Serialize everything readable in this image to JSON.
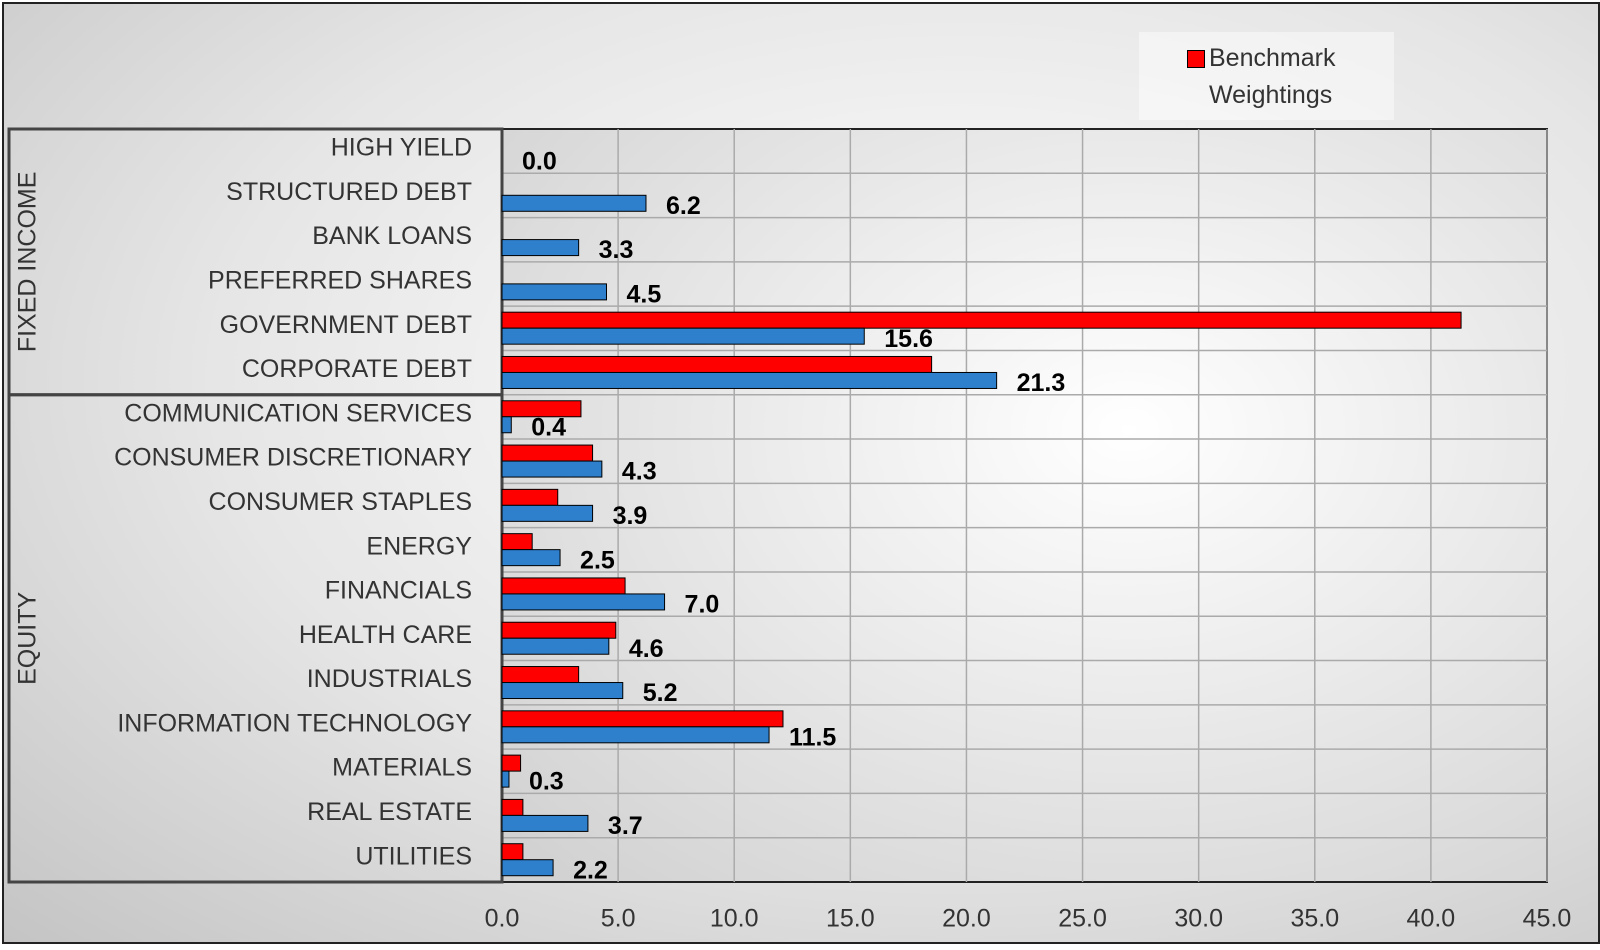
{
  "chart_data": {
    "type": "hbar",
    "categories": [
      "HIGH YIELD",
      "STRUCTURED DEBT",
      "BANK LOANS",
      "PREFERRED SHARES",
      "GOVERNMENT DEBT",
      "CORPORATE DEBT",
      "COMMUNICATION SERVICES",
      "CONSUMER DISCRETIONARY",
      "CONSUMER STAPLES",
      "ENERGY",
      "FINANCIALS",
      "HEALTH CARE",
      "INDUSTRIALS",
      "INFORMATION TECHNOLOGY",
      "MATERIALS",
      "REAL ESTATE",
      "UTILITIES"
    ],
    "groups": [
      {
        "label": "FIXED INCOME",
        "count": 6
      },
      {
        "label": "EQUITY",
        "count": 11
      }
    ],
    "series": [
      {
        "name": "Benchmark Weightings",
        "color": "#ff0000",
        "values": [
          null,
          null,
          null,
          null,
          41.3,
          18.5,
          3.4,
          3.9,
          2.4,
          1.3,
          5.3,
          4.9,
          3.3,
          12.1,
          0.8,
          0.9,
          0.9
        ]
      },
      {
        "color": "#2e7fcc",
        "values": [
          0,
          6.2,
          3.3,
          4.5,
          15.6,
          21.3,
          0.4,
          4.3,
          3.9,
          2.5,
          7,
          4.6,
          5.2,
          11.5,
          0.3,
          3.7,
          2.2
        ],
        "value_labels": [
          "0.0",
          "6.2",
          "3.3",
          "4.5",
          "15.6",
          "21.3",
          "0.4",
          "4.3",
          "3.9",
          "2.5",
          "7.0",
          "4.6",
          "5.2",
          "11.5",
          "0.3",
          "3.7",
          "2.2"
        ]
      }
    ],
    "xlim": [
      0,
      45
    ],
    "xticks": [
      {
        "value": 0,
        "label": "0.0"
      },
      {
        "value": 5,
        "label": "5.0"
      },
      {
        "value": 10,
        "label": "10.0"
      },
      {
        "value": 15,
        "label": "15.0"
      },
      {
        "value": 20,
        "label": "20.0"
      },
      {
        "value": 25,
        "label": "25.0"
      },
      {
        "value": 30,
        "label": "30.0"
      },
      {
        "value": 35,
        "label": "35.0"
      },
      {
        "value": 40,
        "label": "40.0"
      },
      {
        "value": 45,
        "label": "45.0"
      }
    ],
    "grid": true,
    "legend": "top-right"
  }
}
